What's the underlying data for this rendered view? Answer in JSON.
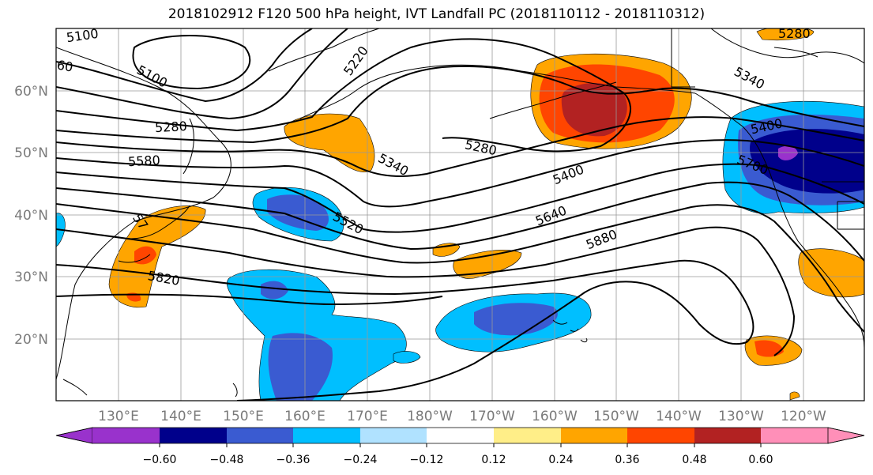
{
  "title": "2018102912 F120 500 hPa height, IVT Landfall PC (2018110112 - 2018110312)",
  "lon_labels": [
    "130°E",
    "140°E",
    "150°E",
    "160°E",
    "170°E",
    "180°W",
    "170°W",
    "160°W",
    "150°W",
    "140°W",
    "130°W",
    "120°W"
  ],
  "lat_labels": [
    "60°N",
    "50°N",
    "40°N",
    "30°N",
    "20°N"
  ],
  "contour_labels": [
    {
      "text": "5100"
    },
    {
      "text": "5100"
    },
    {
      "text": "60"
    },
    {
      "text": "5220"
    },
    {
      "text": "5280"
    },
    {
      "text": "5580"
    },
    {
      "text": "5340"
    },
    {
      "text": "5280"
    },
    {
      "text": "5340"
    },
    {
      "text": "5400"
    },
    {
      "text": "5400"
    },
    {
      "text": "5700"
    },
    {
      "text": "5640"
    },
    {
      "text": "5520"
    },
    {
      "text": "5880"
    },
    {
      "text": "5820"
    },
    {
      "text": "57"
    },
    {
      "text": "5280"
    }
  ],
  "colorbar": {
    "colors": [
      "#9932cc",
      "#00008b",
      "#3a5bd1",
      "#00bfff",
      "#b0e2ff",
      "#ffffff",
      "#ffee88",
      "#ffa500",
      "#ff4500",
      "#b22222",
      "#ff8fb8"
    ],
    "tick_labels": [
      "−0.60",
      "−0.48",
      "−0.36",
      "−0.24",
      "−0.12",
      "0.12",
      "0.24",
      "0.36",
      "0.48",
      "0.60"
    ]
  }
}
